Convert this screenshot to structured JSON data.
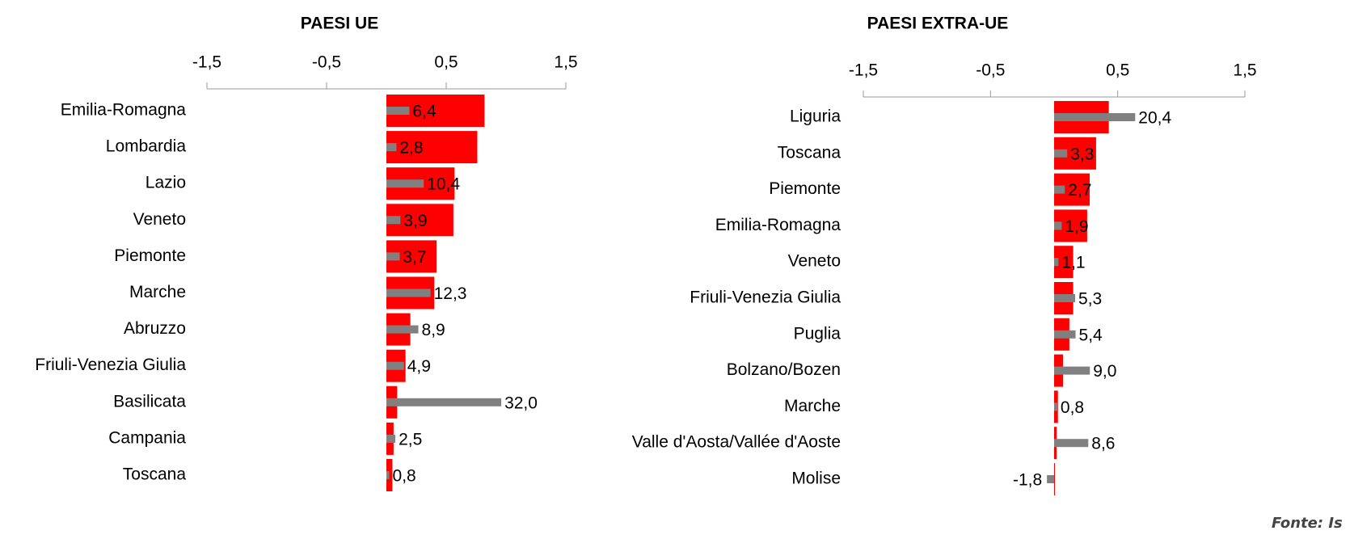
{
  "chart_data": [
    {
      "type": "hbar",
      "title": "PAESI UE",
      "categories": [
        "Emilia-Romagna",
        "Lombardia",
        "Lazio",
        "Veneto",
        "Piemonte",
        "Marche",
        "Abruzzo",
        "Friuli-Venezia Giulia",
        "Basilicata",
        "Campania",
        "Toscana"
      ],
      "series": [
        {
          "color": "#ff0000",
          "values": [
            0.82,
            0.76,
            0.57,
            0.56,
            0.42,
            0.4,
            0.2,
            0.16,
            0.09,
            0.06,
            0.05
          ]
        },
        {
          "color": "#808080",
          "axis": "x2",
          "values": [
            6.4,
            2.8,
            10.4,
            3.9,
            3.7,
            12.3,
            8.9,
            4.9,
            32.0,
            2.5,
            0.8
          ],
          "value_labels": [
            "6,4",
            "2,8",
            "10,4",
            "3,9",
            "3,7",
            "12,3",
            "8,9",
            "4,9",
            "32,0",
            "2,5",
            "0,8"
          ]
        }
      ],
      "xlim": [
        -1.5,
        1.5
      ],
      "xticks": [
        {
          "value": -1.5,
          "label": "-1,5"
        },
        {
          "value": -0.5,
          "label": "-0,5"
        },
        {
          "value": 0.5,
          "label": "0,5"
        },
        {
          "value": 1.5,
          "label": "1,5"
        }
      ],
      "x2lim": [
        -50,
        50
      ]
    },
    {
      "type": "hbar",
      "title": "PAESI EXTRA-UE",
      "categories": [
        "Liguria",
        "Toscana",
        "Piemonte",
        "Emilia-Romagna",
        "Veneto",
        "Friuli-Venezia Giulia",
        "Puglia",
        "Bolzano/Bozen",
        "Marche",
        "Valle d'Aosta/Vallée d'Aoste",
        "Molise"
      ],
      "series": [
        {
          "color": "#ff0000",
          "values": [
            0.43,
            0.33,
            0.28,
            0.26,
            0.15,
            0.15,
            0.12,
            0.07,
            0.03,
            0.02,
            0.0
          ]
        },
        {
          "color": "#808080",
          "axis": "x2",
          "values": [
            20.4,
            3.3,
            2.7,
            1.9,
            1.1,
            5.3,
            5.4,
            9.0,
            0.8,
            8.6,
            -1.8
          ],
          "value_labels": [
            "20,4",
            "3,3",
            "2,7",
            "1,9",
            "1,1",
            "5,3",
            "5,4",
            "9,0",
            "0,8",
            "8,6",
            "-1,8"
          ]
        }
      ],
      "xlim": [
        -1.5,
        1.5
      ],
      "xticks": [
        {
          "value": -1.5,
          "label": "-1,5"
        },
        {
          "value": -0.5,
          "label": "-0,5"
        },
        {
          "value": 0.5,
          "label": "0,5"
        },
        {
          "value": 1.5,
          "label": "1,5"
        }
      ],
      "x2lim": [
        -48,
        48
      ]
    }
  ],
  "source": "Fonte: Is"
}
